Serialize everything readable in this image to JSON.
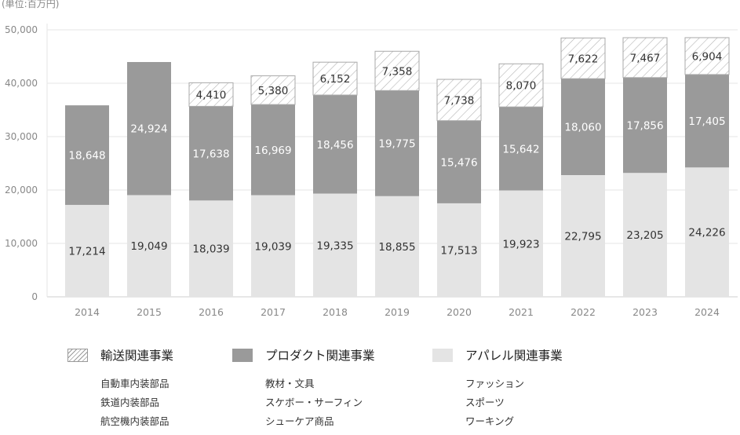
{
  "unit_label": "(単位:百万円)",
  "chart_data": {
    "type": "bar",
    "stacked": true,
    "categories": [
      "2014",
      "2015",
      "2016",
      "2017",
      "2018",
      "2019",
      "2020",
      "2021",
      "2022",
      "2023",
      "2024"
    ],
    "ylim": [
      0,
      50000
    ],
    "yticks": [
      "0",
      "10,000",
      "20,000",
      "30,000",
      "40,000",
      "50,000"
    ],
    "ytick_values": [
      0,
      10000,
      20000,
      30000,
      40000,
      50000
    ],
    "grid": true,
    "series": [
      {
        "name": "アパレル関連事業",
        "color": "#e4e4e4",
        "label_color": "#333333",
        "values": [
          17214,
          19049,
          18039,
          19039,
          19335,
          18855,
          17513,
          19923,
          22795,
          23205,
          24226
        ],
        "labels": [
          "17,214",
          "19,049",
          "18,039",
          "19,039",
          "19,335",
          "18,855",
          "17,513",
          "19,923",
          "22,795",
          "23,205",
          "24,226"
        ]
      },
      {
        "name": "プロダクト関連事業",
        "color": "#9a9a9a",
        "label_color": "#ffffff",
        "values": [
          18648,
          24924,
          17638,
          16969,
          18456,
          19775,
          15476,
          15642,
          18060,
          17856,
          17405
        ],
        "labels": [
          "18,648",
          "24,924",
          "17,638",
          "16,969",
          "18,456",
          "19,775",
          "15,476",
          "15,642",
          "18,060",
          "17,856",
          "17,405"
        ]
      },
      {
        "name": "輸送関連事業",
        "color": "hatch",
        "label_color": "#333333",
        "values": [
          null,
          null,
          4410,
          5380,
          6152,
          7358,
          7738,
          8070,
          7622,
          7467,
          6904
        ],
        "labels": [
          "",
          "",
          "4,410",
          "5,380",
          "6,152",
          "7,358",
          "7,738",
          "8,070",
          "7,622",
          "7,467",
          "6,904"
        ]
      }
    ]
  },
  "legend": [
    {
      "title": "輸送関連事業",
      "items": [
        "自動車内装部品",
        "鉄道内装部品",
        "航空機内装部品"
      ]
    },
    {
      "title": "プロダクト関連事業",
      "items": [
        "教材・文具",
        "スケボー・サーフィン",
        "シューケア商品"
      ]
    },
    {
      "title": "アパレル関連事業",
      "items": [
        "ファッション",
        "スポーツ",
        "ワーキング"
      ]
    }
  ]
}
